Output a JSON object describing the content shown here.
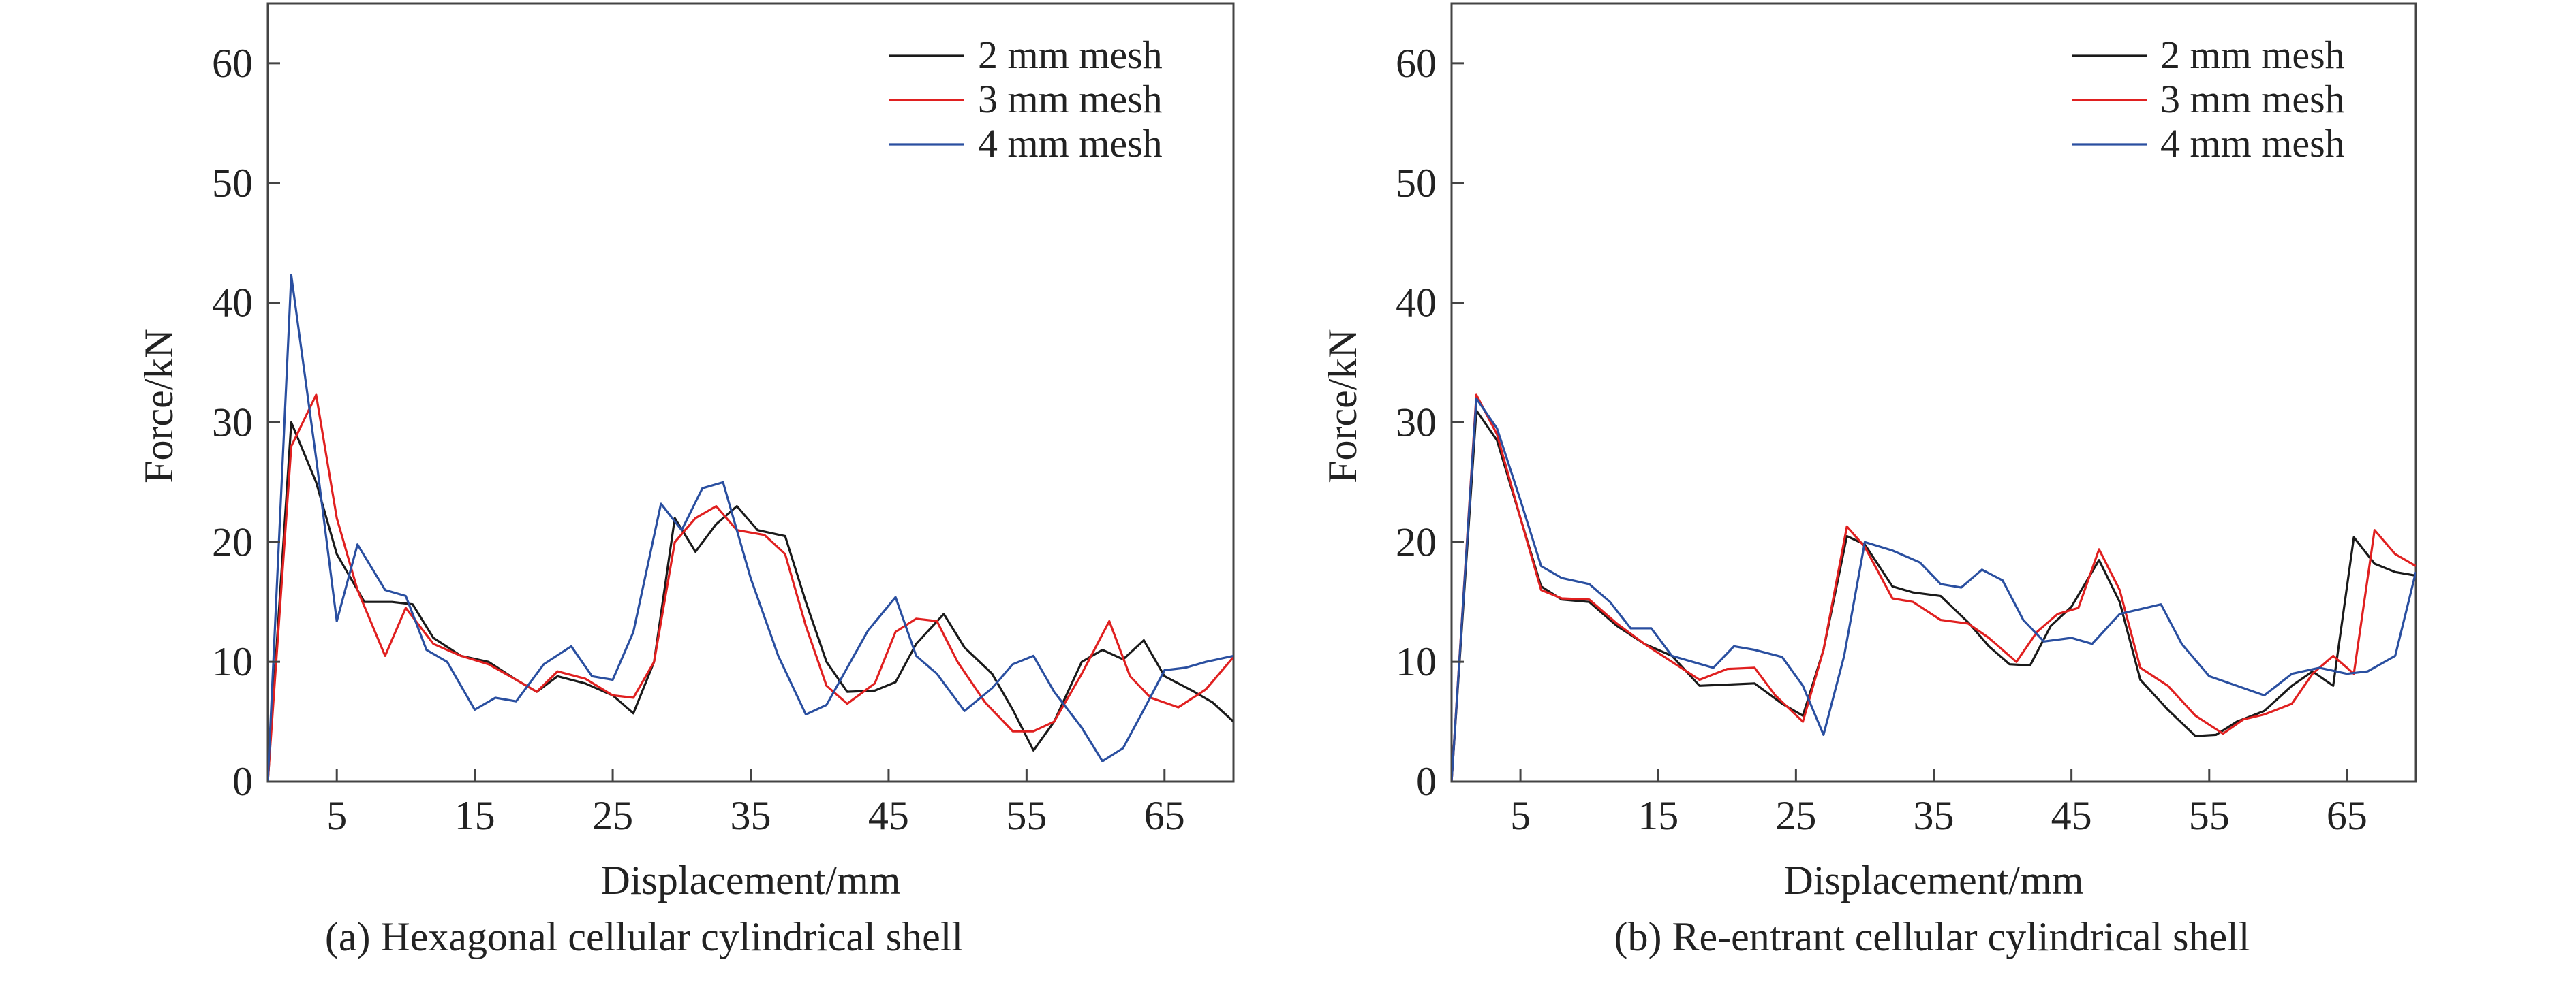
{
  "chart_data": [
    {
      "type": "line",
      "caption": "(a) Hexagonal cellular cylindrical shell",
      "xlabel": "Displacement/mm",
      "ylabel": "Force/kN",
      "xlim": [
        0,
        70
      ],
      "ylim": [
        0,
        65
      ],
      "xticks": [
        5,
        15,
        25,
        35,
        45,
        55,
        65
      ],
      "yticks": [
        0,
        10,
        20,
        30,
        40,
        50,
        60
      ],
      "grid": false,
      "legend_position": "top-right",
      "series": [
        {
          "name": "2 mm mesh",
          "color": "#1a1a1a",
          "points": [
            [
              0,
              0
            ],
            [
              1.7,
              30
            ],
            [
              3.5,
              25
            ],
            [
              5,
              19
            ],
            [
              7,
              15
            ],
            [
              9,
              15
            ],
            [
              10.5,
              14.8
            ],
            [
              12,
              12
            ],
            [
              14,
              10.5
            ],
            [
              16,
              10
            ],
            [
              18,
              8.5
            ],
            [
              19.5,
              7.5
            ],
            [
              21,
              8.8
            ],
            [
              23,
              8.2
            ],
            [
              25,
              7.2
            ],
            [
              26.5,
              5.7
            ],
            [
              28,
              10
            ],
            [
              29.5,
              22
            ],
            [
              31,
              19.2
            ],
            [
              32.5,
              21.5
            ],
            [
              34,
              23
            ],
            [
              35.5,
              21
            ],
            [
              37.5,
              20.5
            ],
            [
              39,
              15
            ],
            [
              40.5,
              10
            ],
            [
              42,
              7.5
            ],
            [
              44,
              7.6
            ],
            [
              45.5,
              8.3
            ],
            [
              47,
              11.5
            ],
            [
              49,
              14
            ],
            [
              50.5,
              11.2
            ],
            [
              52.5,
              9
            ],
            [
              54,
              6
            ],
            [
              55.5,
              2.6
            ],
            [
              57,
              5
            ],
            [
              59,
              10
            ],
            [
              60.5,
              11
            ],
            [
              62,
              10.2
            ],
            [
              63.5,
              11.8
            ],
            [
              65,
              8.8
            ],
            [
              67,
              7.6
            ],
            [
              68.5,
              6.6
            ],
            [
              70,
              5
            ]
          ]
        },
        {
          "name": "3 mm mesh",
          "color": "#e02020",
          "points": [
            [
              0,
              0
            ],
            [
              1.7,
              28
            ],
            [
              3.5,
              32.3
            ],
            [
              5,
              22
            ],
            [
              6.5,
              16
            ],
            [
              8.5,
              10.5
            ],
            [
              10,
              14.5
            ],
            [
              12,
              11.5
            ],
            [
              14,
              10.5
            ],
            [
              16,
              9.8
            ],
            [
              18,
              8.5
            ],
            [
              19.5,
              7.5
            ],
            [
              21,
              9.2
            ],
            [
              23,
              8.6
            ],
            [
              25,
              7.2
            ],
            [
              26.5,
              7
            ],
            [
              28,
              10
            ],
            [
              29.5,
              20
            ],
            [
              31,
              22
            ],
            [
              32.5,
              23
            ],
            [
              34,
              21
            ],
            [
              36,
              20.6
            ],
            [
              37.5,
              19
            ],
            [
              39,
              13
            ],
            [
              40.5,
              8
            ],
            [
              42,
              6.5
            ],
            [
              44,
              8.2
            ],
            [
              45.5,
              12.5
            ],
            [
              47,
              13.6
            ],
            [
              48.5,
              13.4
            ],
            [
              50,
              10
            ],
            [
              52,
              6.6
            ],
            [
              54,
              4.2
            ],
            [
              55.5,
              4.2
            ],
            [
              57,
              5
            ],
            [
              59,
              9
            ],
            [
              61,
              13.4
            ],
            [
              62.5,
              8.8
            ],
            [
              64,
              7
            ],
            [
              66,
              6.2
            ],
            [
              68,
              7.7
            ],
            [
              70,
              10.4
            ]
          ]
        },
        {
          "name": "4 mm mesh",
          "color": "#2a4fa0",
          "points": [
            [
              0,
              0
            ],
            [
              1.7,
              42.3
            ],
            [
              3.5,
              27
            ],
            [
              5,
              13.4
            ],
            [
              6.5,
              19.8
            ],
            [
              8.5,
              16
            ],
            [
              10,
              15.5
            ],
            [
              11.5,
              11
            ],
            [
              13,
              10
            ],
            [
              15,
              6
            ],
            [
              16.5,
              7
            ],
            [
              18,
              6.7
            ],
            [
              20,
              9.8
            ],
            [
              22,
              11.3
            ],
            [
              23.5,
              8.8
            ],
            [
              25,
              8.5
            ],
            [
              26.5,
              12.5
            ],
            [
              28.5,
              23.2
            ],
            [
              30,
              21
            ],
            [
              31.5,
              24.5
            ],
            [
              33,
              25
            ],
            [
              35,
              17
            ],
            [
              37,
              10.5
            ],
            [
              39,
              5.6
            ],
            [
              40.5,
              6.4
            ],
            [
              42,
              9.5
            ],
            [
              43.5,
              12.6
            ],
            [
              45.5,
              15.4
            ],
            [
              47,
              10.5
            ],
            [
              48.5,
              9
            ],
            [
              50.5,
              5.9
            ],
            [
              52.5,
              7.8
            ],
            [
              54,
              9.8
            ],
            [
              55.5,
              10.5
            ],
            [
              57,
              7.5
            ],
            [
              59,
              4.5
            ],
            [
              60.5,
              1.7
            ],
            [
              62,
              2.8
            ],
            [
              63.5,
              6
            ],
            [
              65,
              9.3
            ],
            [
              66.5,
              9.5
            ],
            [
              68,
              10
            ],
            [
              70,
              10.5
            ]
          ]
        }
      ]
    },
    {
      "type": "line",
      "caption": "(b) Re-entrant cellular cylindrical shell",
      "xlabel": "Displacement/mm",
      "ylabel": "Force/kN",
      "xlim": [
        0,
        70
      ],
      "ylim": [
        0,
        65
      ],
      "xticks": [
        5,
        15,
        25,
        35,
        45,
        55,
        65
      ],
      "yticks": [
        0,
        10,
        20,
        30,
        40,
        50,
        60
      ],
      "grid": false,
      "legend_position": "top-right",
      "series": [
        {
          "name": "2 mm mesh",
          "color": "#1a1a1a",
          "points": [
            [
              0,
              0
            ],
            [
              1.8,
              31
            ],
            [
              3.3,
              28.5
            ],
            [
              5,
              22
            ],
            [
              6.5,
              16.3
            ],
            [
              8,
              15.2
            ],
            [
              10,
              15
            ],
            [
              12,
              13
            ],
            [
              14,
              11.5
            ],
            [
              16,
              10.5
            ],
            [
              18,
              8
            ],
            [
              20,
              8.1
            ],
            [
              22,
              8.2
            ],
            [
              24,
              6.5
            ],
            [
              25.5,
              5.5
            ],
            [
              27,
              11
            ],
            [
              28.7,
              20.5
            ],
            [
              30,
              19.8
            ],
            [
              32,
              16.3
            ],
            [
              33.5,
              15.8
            ],
            [
              35.5,
              15.5
            ],
            [
              37.5,
              13.3
            ],
            [
              39,
              11.3
            ],
            [
              40.5,
              9.8
            ],
            [
              42,
              9.7
            ],
            [
              43.5,
              13
            ],
            [
              45,
              14.6
            ],
            [
              47,
              18.5
            ],
            [
              48.5,
              15
            ],
            [
              50,
              8.5
            ],
            [
              52,
              6
            ],
            [
              54,
              3.8
            ],
            [
              55.5,
              3.9
            ],
            [
              57,
              5
            ],
            [
              59,
              5.9
            ],
            [
              61,
              8
            ],
            [
              62.5,
              9.2
            ],
            [
              64,
              8
            ],
            [
              65.5,
              20.4
            ],
            [
              67,
              18.2
            ],
            [
              68.5,
              17.5
            ],
            [
              70,
              17.2
            ]
          ]
        },
        {
          "name": "3 mm mesh",
          "color": "#e02020",
          "points": [
            [
              0,
              0
            ],
            [
              1.8,
              32.3
            ],
            [
              3.3,
              29
            ],
            [
              5,
              22
            ],
            [
              6.5,
              16
            ],
            [
              8,
              15.3
            ],
            [
              10,
              15.2
            ],
            [
              12,
              13.2
            ],
            [
              14,
              11.5
            ],
            [
              16,
              10
            ],
            [
              18,
              8.5
            ],
            [
              20,
              9.4
            ],
            [
              22,
              9.5
            ],
            [
              23.5,
              7.2
            ],
            [
              25.5,
              5
            ],
            [
              27,
              11
            ],
            [
              28.7,
              21.3
            ],
            [
              30,
              19.6
            ],
            [
              32,
              15.3
            ],
            [
              33.5,
              15
            ],
            [
              35.5,
              13.5
            ],
            [
              37.5,
              13.2
            ],
            [
              39,
              12
            ],
            [
              41,
              10
            ],
            [
              42.5,
              12.5
            ],
            [
              44,
              14
            ],
            [
              45.5,
              14.5
            ],
            [
              47,
              19.4
            ],
            [
              48.5,
              16
            ],
            [
              50,
              9.5
            ],
            [
              52,
              8
            ],
            [
              54,
              5.5
            ],
            [
              56,
              4
            ],
            [
              57.5,
              5.2
            ],
            [
              59,
              5.6
            ],
            [
              61,
              6.5
            ],
            [
              62.5,
              9
            ],
            [
              64,
              10.5
            ],
            [
              65.5,
              9
            ],
            [
              67,
              21
            ],
            [
              68.5,
              19
            ],
            [
              70,
              18
            ]
          ]
        },
        {
          "name": "4 mm mesh",
          "color": "#2a4fa0",
          "points": [
            [
              0,
              0
            ],
            [
              1.8,
              32
            ],
            [
              3.3,
              29.5
            ],
            [
              5,
              23.5
            ],
            [
              6.5,
              18
            ],
            [
              8,
              17
            ],
            [
              10,
              16.5
            ],
            [
              11.5,
              15
            ],
            [
              13,
              12.8
            ],
            [
              14.5,
              12.8
            ],
            [
              16,
              10.5
            ],
            [
              17.5,
              10
            ],
            [
              19,
              9.5
            ],
            [
              20.5,
              11.3
            ],
            [
              22,
              11
            ],
            [
              24,
              10.4
            ],
            [
              25.5,
              8
            ],
            [
              27,
              3.9
            ],
            [
              28.5,
              10.5
            ],
            [
              30,
              20
            ],
            [
              32,
              19.3
            ],
            [
              34,
              18.3
            ],
            [
              35.5,
              16.5
            ],
            [
              37,
              16.2
            ],
            [
              38.5,
              17.7
            ],
            [
              40,
              16.8
            ],
            [
              41.5,
              13.5
            ],
            [
              43,
              11.7
            ],
            [
              45,
              12
            ],
            [
              46.5,
              11.5
            ],
            [
              48.5,
              14
            ],
            [
              50,
              14.4
            ],
            [
              51.5,
              14.8
            ],
            [
              53,
              11.5
            ],
            [
              55,
              8.8
            ],
            [
              57,
              8
            ],
            [
              59,
              7.2
            ],
            [
              61,
              9
            ],
            [
              63,
              9.5
            ],
            [
              65,
              9
            ],
            [
              66.5,
              9.2
            ],
            [
              68.5,
              10.5
            ],
            [
              70,
              17.5
            ]
          ]
        }
      ]
    }
  ]
}
